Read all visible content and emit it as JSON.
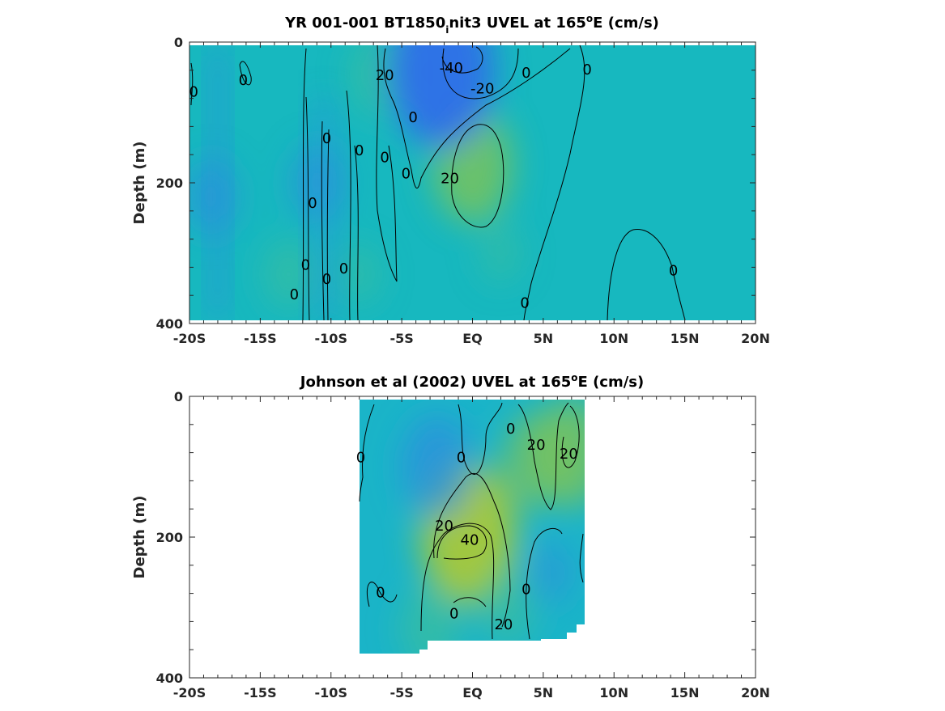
{
  "chart_data": [
    {
      "type": "heatmap",
      "title": "YR 001-001 BT1850",
      "title_sub": "i",
      "title_rest": "nit3 UVEL at 165",
      "title_sup": "o",
      "title_end": "E (cm/s)",
      "xlabel": "",
      "ylabel": "Depth (m)",
      "xlim": [
        -20,
        20
      ],
      "ylim": [
        0,
        400
      ],
      "x_ticks": [
        {
          "v": -20,
          "label": "-20S"
        },
        {
          "v": -15,
          "label": "-15S"
        },
        {
          "v": -10,
          "label": "-10S"
        },
        {
          "v": -5,
          "label": "-5S"
        },
        {
          "v": 0,
          "label": "EQ"
        },
        {
          "v": 5,
          "label": "5N"
        },
        {
          "v": 10,
          "label": "10N"
        },
        {
          "v": 15,
          "label": "15N"
        },
        {
          "v": 20,
          "label": "20N"
        }
      ],
      "y_ticks": [
        {
          "v": 0,
          "label": "0"
        },
        {
          "v": 200,
          "label": "200"
        },
        {
          "v": 400,
          "label": "400"
        }
      ],
      "data_extent": {
        "x": [
          -20,
          20
        ],
        "y": [
          5,
          395
        ]
      },
      "blobs": [
        {
          "x": 0,
          "y": 175,
          "value": 30
        },
        {
          "x": -6.5,
          "y": 45,
          "value": 18
        },
        {
          "x": -2.2,
          "y": 40,
          "value": -45
        },
        {
          "x": -18.5,
          "y": 220,
          "value": -15
        },
        {
          "x": -11,
          "y": 200,
          "value": -15
        },
        {
          "x": -13,
          "y": 330,
          "value": 12
        },
        {
          "x": -8,
          "y": 330,
          "value": 8
        },
        {
          "x": 2,
          "y": 300,
          "value": 8
        }
      ],
      "contour_labels": [
        {
          "x": -19.7,
          "y": 72,
          "text": "0"
        },
        {
          "x": -16.2,
          "y": 55,
          "text": "0"
        },
        {
          "x": -6.2,
          "y": 48,
          "text": "20"
        },
        {
          "x": -1.5,
          "y": 38,
          "text": "-40"
        },
        {
          "x": 0.7,
          "y": 67,
          "text": "-20"
        },
        {
          "x": 3.8,
          "y": 45,
          "text": "0"
        },
        {
          "x": 8.1,
          "y": 40,
          "text": "0"
        },
        {
          "x": -4.2,
          "y": 108,
          "text": "0"
        },
        {
          "x": -10.3,
          "y": 138,
          "text": "0"
        },
        {
          "x": -8,
          "y": 155,
          "text": "0"
        },
        {
          "x": -6.2,
          "y": 165,
          "text": "0"
        },
        {
          "x": -4.7,
          "y": 188,
          "text": "0"
        },
        {
          "x": -1.6,
          "y": 195,
          "text": "20"
        },
        {
          "x": -11.3,
          "y": 230,
          "text": "0"
        },
        {
          "x": -11.8,
          "y": 318,
          "text": "0"
        },
        {
          "x": -10.3,
          "y": 338,
          "text": "0"
        },
        {
          "x": -9.1,
          "y": 323,
          "text": "0"
        },
        {
          "x": -12.6,
          "y": 360,
          "text": "0"
        },
        {
          "x": 3.7,
          "y": 372,
          "text": "0"
        },
        {
          "x": 14.2,
          "y": 326,
          "text": "0"
        }
      ]
    },
    {
      "type": "heatmap",
      "title": "Johnson et al (2002) UVEL at 165",
      "title_sup": "o",
      "title_end": "E (cm/s)",
      "xlabel": "",
      "ylabel": "Depth (m)",
      "xlim": [
        -20,
        20
      ],
      "ylim": [
        0,
        400
      ],
      "x_ticks": [
        {
          "v": -20,
          "label": "-20S"
        },
        {
          "v": -15,
          "label": "-15S"
        },
        {
          "v": -10,
          "label": "-10S"
        },
        {
          "v": -5,
          "label": "-5S"
        },
        {
          "v": 0,
          "label": "EQ"
        },
        {
          "v": 5,
          "label": "5N"
        },
        {
          "v": 10,
          "label": "10N"
        },
        {
          "v": 15,
          "label": "15N"
        },
        {
          "v": 20,
          "label": "20N"
        }
      ],
      "y_ticks": [
        {
          "v": 0,
          "label": "0"
        },
        {
          "v": 200,
          "label": "200"
        },
        {
          "v": 400,
          "label": "400"
        }
      ],
      "data_extent": {
        "x": [
          -8,
          8
        ],
        "y": [
          5,
          365
        ]
      },
      "blobs": [
        {
          "x": -0.3,
          "y": 195,
          "value": 40
        },
        {
          "x": 7,
          "y": 80,
          "value": 28
        },
        {
          "x": 4.5,
          "y": 90,
          "value": 22
        },
        {
          "x": -2.5,
          "y": 100,
          "value": -25
        },
        {
          "x": -3,
          "y": 330,
          "value": 18
        },
        {
          "x": 2.5,
          "y": 300,
          "value": 15
        },
        {
          "x": 5.5,
          "y": 250,
          "value": -10
        }
      ],
      "contour_labels": [
        {
          "x": -7.9,
          "y": 88,
          "text": "0"
        },
        {
          "x": -0.8,
          "y": 88,
          "text": "0"
        },
        {
          "x": 2.7,
          "y": 47,
          "text": "0"
        },
        {
          "x": 4.5,
          "y": 70,
          "text": "20"
        },
        {
          "x": 6.8,
          "y": 83,
          "text": "20"
        },
        {
          "x": -2,
          "y": 185,
          "text": "20"
        },
        {
          "x": -0.2,
          "y": 205,
          "text": "40"
        },
        {
          "x": -6.5,
          "y": 280,
          "text": "0"
        },
        {
          "x": 3.8,
          "y": 275,
          "text": "0"
        },
        {
          "x": -1.3,
          "y": 310,
          "text": "0"
        },
        {
          "x": 2.2,
          "y": 325,
          "text": "20"
        }
      ]
    }
  ]
}
